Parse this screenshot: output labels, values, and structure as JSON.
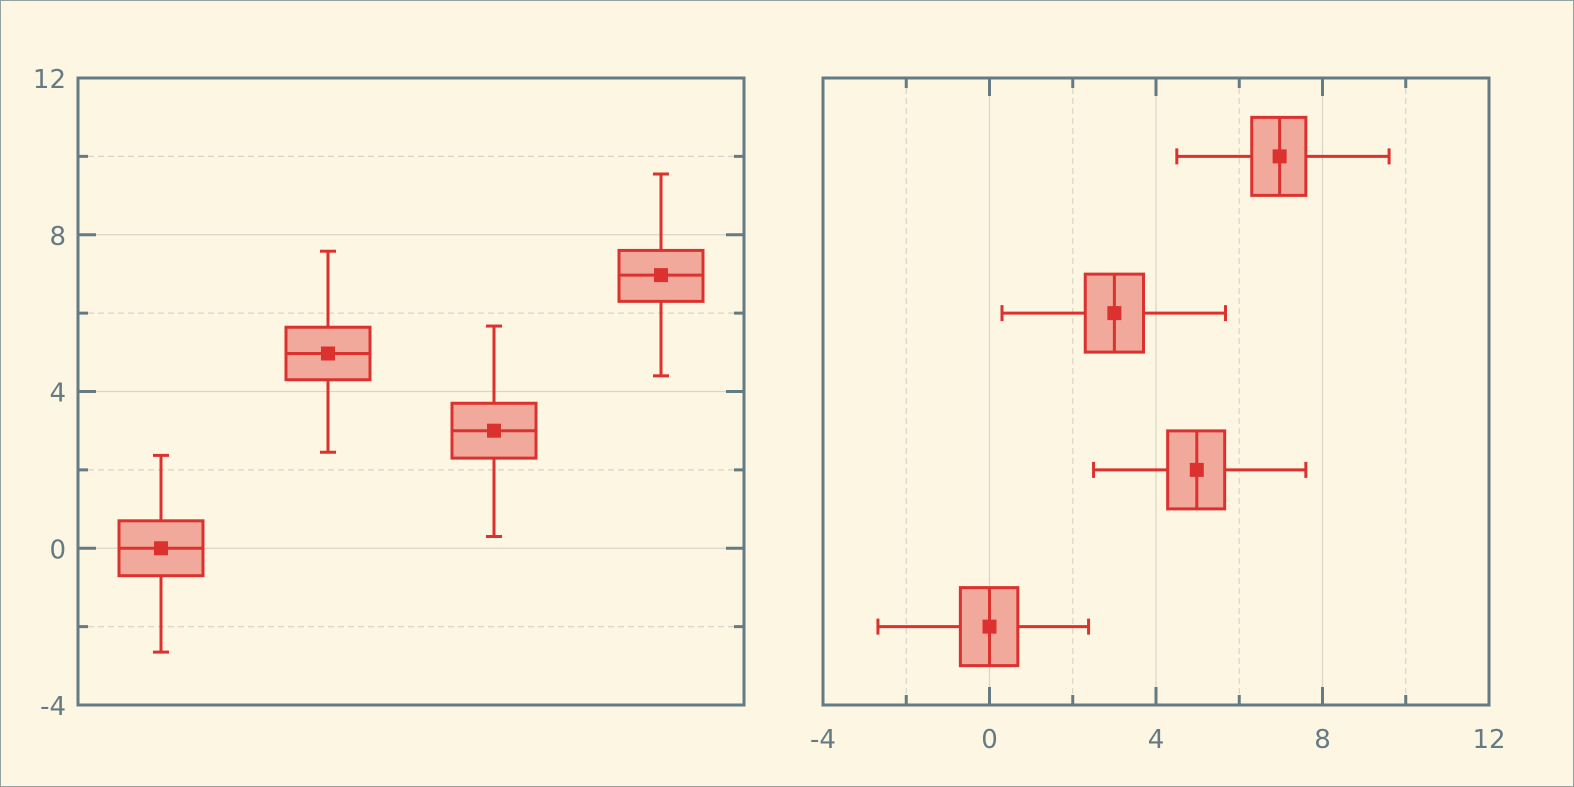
{
  "theme": {
    "background": "#fdf6e3",
    "axis_color": "#657b83",
    "grid_major": "#d9d4c3",
    "grid_minor": "#d9d4c3",
    "box_stroke": "#dc322f",
    "box_fill": "#f0a99b",
    "mean_marker": "#dc322f"
  },
  "chart_data": [
    {
      "type": "boxplot",
      "orientation": "vertical",
      "title": "",
      "xlabel": "",
      "ylabel": "",
      "ylim": [
        -4,
        12
      ],
      "y_major_ticks": [
        -4,
        0,
        4,
        8,
        12
      ],
      "y_minor_ticks": [
        -2,
        2,
        6,
        10
      ],
      "x_tick_labels": [],
      "grid": {
        "major": "solid",
        "minor": "dashed"
      },
      "legend": null,
      "boxes": [
        {
          "position": 1,
          "whisker_low": -2.65,
          "q1": -0.7,
          "median": 0.0,
          "q3": 0.7,
          "whisker_high": 2.37,
          "mean": 0.0
        },
        {
          "position": 2,
          "whisker_low": 2.45,
          "q1": 4.3,
          "median": 4.97,
          "q3": 5.64,
          "whisker_high": 7.58,
          "mean": 4.97
        },
        {
          "position": 3,
          "whisker_low": 0.3,
          "q1": 2.3,
          "median": 3.0,
          "q3": 3.7,
          "whisker_high": 5.67,
          "mean": 3.0
        },
        {
          "position": 4,
          "whisker_low": 4.4,
          "q1": 6.3,
          "median": 6.97,
          "q3": 7.6,
          "whisker_high": 9.55,
          "mean": 6.97
        }
      ]
    },
    {
      "type": "boxplot",
      "orientation": "horizontal",
      "title": "",
      "xlabel": "",
      "ylabel": "",
      "xlim": [
        -4,
        12
      ],
      "x_major_ticks": [
        -4,
        0,
        4,
        8,
        12
      ],
      "x_minor_ticks": [
        -2,
        2,
        6,
        10
      ],
      "y_tick_labels": [],
      "grid": {
        "major": "solid",
        "minor": "dashed"
      },
      "legend": null,
      "boxes": [
        {
          "position": -2,
          "whisker_low": -2.68,
          "q1": -0.7,
          "median": 0.0,
          "q3": 0.68,
          "whisker_high": 2.38,
          "mean": 0.0
        },
        {
          "position": 2,
          "whisker_low": 2.5,
          "q1": 4.28,
          "median": 4.98,
          "q3": 5.65,
          "whisker_high": 7.6,
          "mean": 4.98
        },
        {
          "position": 6,
          "whisker_low": 0.3,
          "q1": 2.3,
          "median": 3.0,
          "q3": 3.7,
          "whisker_high": 5.67,
          "mean": 3.0
        },
        {
          "position": 10,
          "whisker_low": 4.5,
          "q1": 6.3,
          "median": 6.97,
          "q3": 7.6,
          "whisker_high": 9.6,
          "mean": 6.97
        }
      ]
    }
  ]
}
